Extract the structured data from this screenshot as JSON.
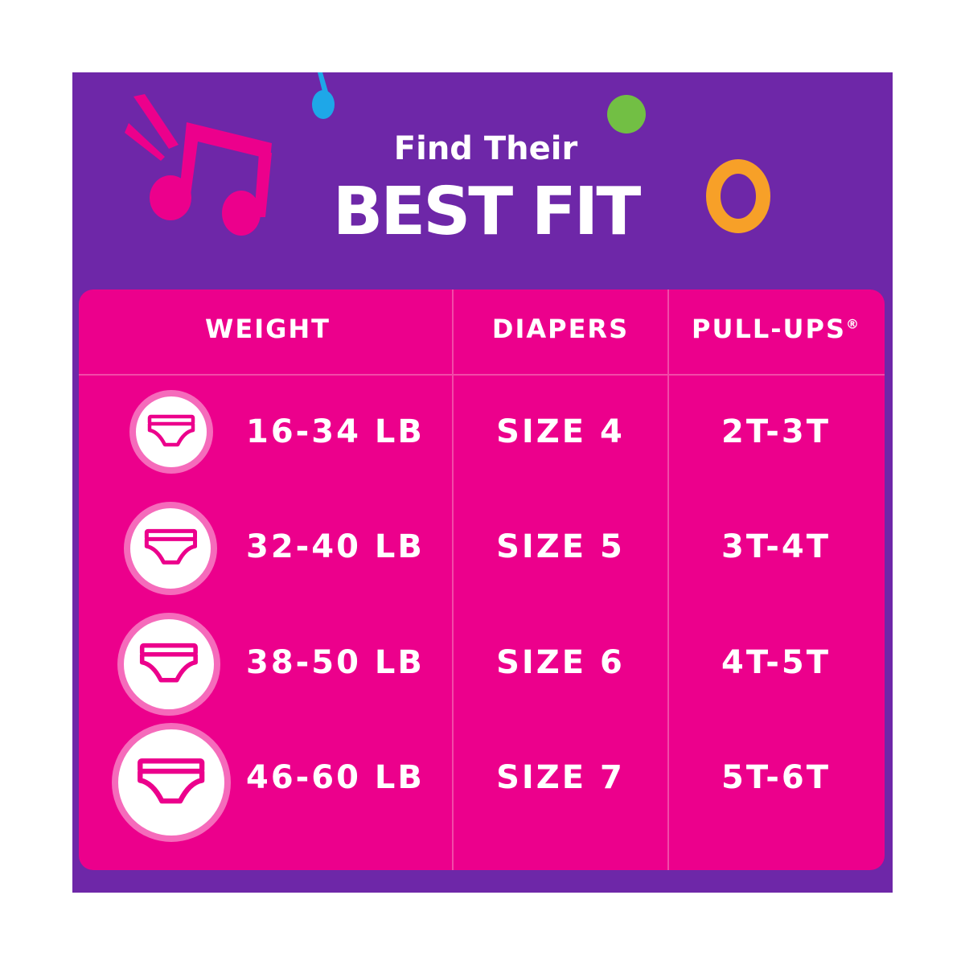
{
  "header": {
    "line1": "Find Their",
    "line2": "BEST FIT"
  },
  "colors": {
    "background": "#6e27a8",
    "card": "#ec008c",
    "icon_ring": "#f56bbb",
    "note_pink": "#ec008c",
    "note_blue": "#1ea7e8",
    "dot_green": "#72bf44",
    "ring_orange": "#f7a028"
  },
  "decorations": [
    "music-note-icon",
    "music-note-icon",
    "green-dot",
    "orange-ring"
  ],
  "table": {
    "columns": [
      "WEIGHT",
      "DIAPERS",
      "PULL-UPS"
    ],
    "pullups_mark": "®",
    "rows": [
      {
        "icon": "diaper-icon",
        "weight": "16-34 LB",
        "diapers": "SIZE 4",
        "pullups": "2T-3T"
      },
      {
        "icon": "diaper-icon",
        "weight": "32-40 LB",
        "diapers": "SIZE 5",
        "pullups": "3T-4T"
      },
      {
        "icon": "diaper-icon",
        "weight": "38-50 LB",
        "diapers": "SIZE 6",
        "pullups": "4T-5T"
      },
      {
        "icon": "diaper-icon",
        "weight": "46-60 LB",
        "diapers": "SIZE 7",
        "pullups": "5T-6T"
      }
    ]
  }
}
